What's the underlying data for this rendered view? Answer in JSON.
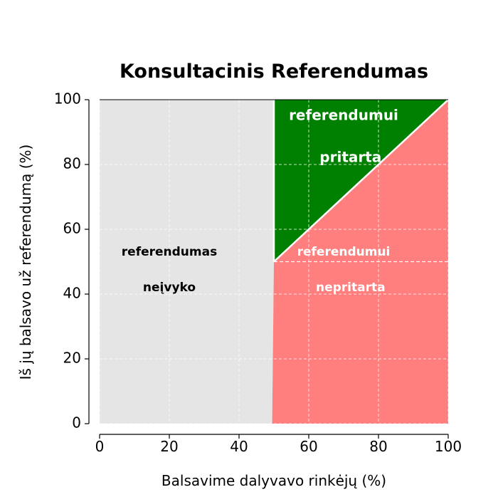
{
  "chart_data": {
    "type": "area",
    "title": "Konsultacinis Referendumas",
    "xlabel": "Balsavime dalyvavo rinkėjų (%)",
    "ylabel": "Iš jų balsavo už referendumą (%)",
    "xlim": [
      0,
      100
    ],
    "ylim": [
      0,
      100
    ],
    "x_ticks": [
      0,
      20,
      40,
      60,
      80,
      100
    ],
    "y_ticks": [
      0,
      20,
      40,
      60,
      80,
      100
    ],
    "grid": true,
    "regions": [
      {
        "name": "neivyko",
        "color": "#e5e5e5",
        "polygon": [
          [
            0,
            0
          ],
          [
            49.5,
            0
          ],
          [
            50,
            50
          ],
          [
            50,
            100
          ],
          [
            0,
            100
          ]
        ],
        "label_lines": [
          "referendumas",
          "neįvyko"
        ],
        "label_pos": [
          [
            20,
            53
          ],
          [
            20,
            42
          ]
        ],
        "label_color": "#000000",
        "label_size": 17
      },
      {
        "name": "pritarta",
        "color": "#008000",
        "polygon": [
          [
            50,
            50
          ],
          [
            100,
            100
          ],
          [
            50,
            100
          ]
        ],
        "label_lines": [
          "referendumui",
          "pritarta"
        ],
        "label_pos": [
          [
            70,
            95
          ],
          [
            72,
            82
          ]
        ],
        "label_color": "#ffffff",
        "label_size": 20
      },
      {
        "name": "nepritarta",
        "color": "#ff7f7f",
        "polygon": [
          [
            49.5,
            0
          ],
          [
            100,
            0
          ],
          [
            100,
            100
          ],
          [
            50,
            50
          ]
        ],
        "label_lines": [
          "referendumui",
          "nepritarta"
        ],
        "label_pos": [
          [
            70,
            53
          ],
          [
            72,
            42
          ]
        ],
        "label_color": "#ffffff",
        "label_size": 17
      }
    ],
    "boundary_lines": [
      {
        "name": "diagonal-boundary",
        "points": [
          [
            50,
            50
          ],
          [
            100,
            100
          ]
        ]
      },
      {
        "name": "turnout-threshold-line",
        "points": [
          [
            50,
            50
          ],
          [
            50,
            100
          ]
        ]
      },
      {
        "name": "majority-line",
        "points": [
          [
            50,
            50
          ],
          [
            100,
            50
          ]
        ]
      }
    ]
  }
}
